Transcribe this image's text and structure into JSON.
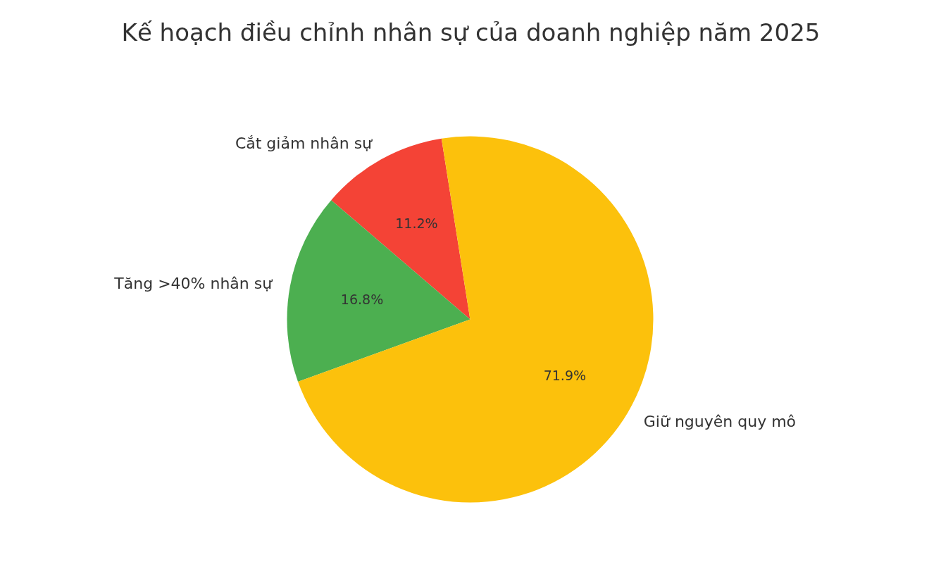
{
  "chart_data": {
    "type": "pie",
    "title": "Kế hoạch điều chỉnh nhân sự của doanh nghiệp năm 2025",
    "categories": [
      "Cắt giảm nhân sự",
      "Tăng >40% nhân sự",
      "Giữ nguyên quy mô"
    ],
    "values": [
      11.2,
      16.8,
      71.9
    ],
    "colors": [
      "#f44336",
      "#4caf50",
      "#fcc10c"
    ],
    "value_labels": [
      "11.2%",
      "16.8%",
      "71.9%"
    ]
  }
}
